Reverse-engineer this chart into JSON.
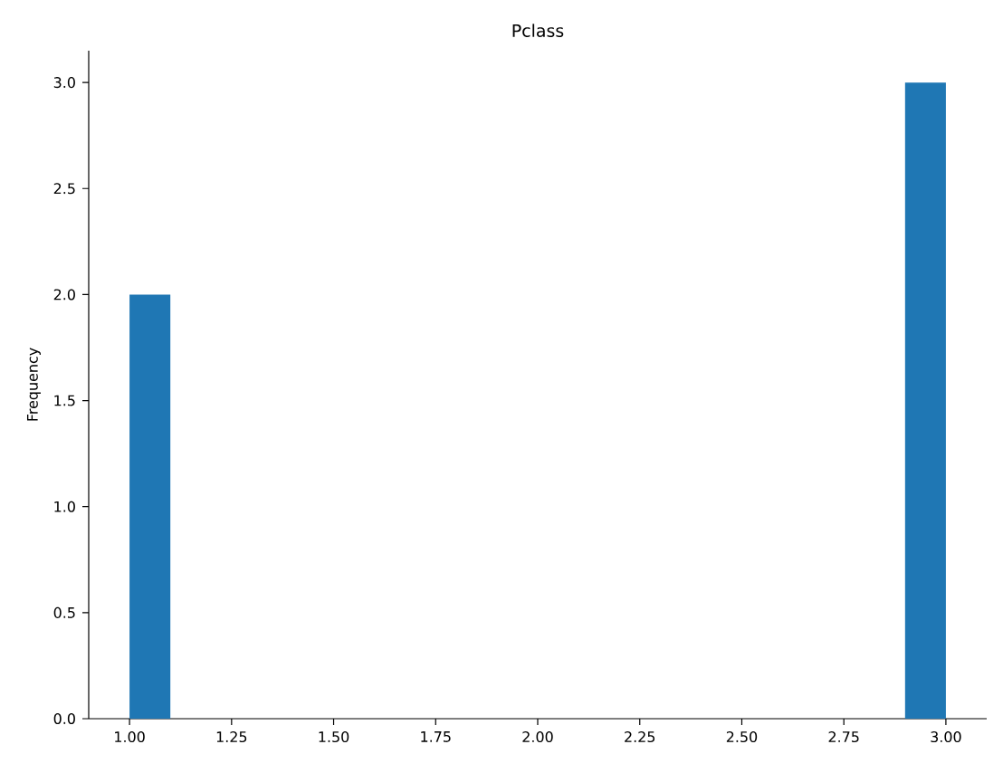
{
  "chart_data": {
    "type": "histogram",
    "title": "Pclass",
    "ylabel": "Frequency",
    "color": "#1f77b4",
    "bins": [
      1.0,
      1.1,
      1.2,
      1.3,
      1.4,
      1.5,
      1.6,
      1.7,
      1.8,
      1.9,
      2.0,
      2.1,
      2.2,
      2.3,
      2.4,
      2.5,
      2.6,
      2.7,
      2.8,
      2.9,
      3.0
    ],
    "values": [
      2,
      0,
      0,
      0,
      0,
      0,
      0,
      0,
      0,
      0,
      0,
      0,
      0,
      0,
      0,
      0,
      0,
      0,
      0,
      3
    ],
    "xlim": [
      0.9,
      3.1
    ],
    "ylim": [
      0,
      3.15
    ],
    "xticks": [
      {
        "value": 1.0,
        "label": "1.00"
      },
      {
        "value": 1.25,
        "label": "1.25"
      },
      {
        "value": 1.5,
        "label": "1.50"
      },
      {
        "value": 1.75,
        "label": "1.75"
      },
      {
        "value": 2.0,
        "label": "2.00"
      },
      {
        "value": 2.25,
        "label": "2.25"
      },
      {
        "value": 2.5,
        "label": "2.50"
      },
      {
        "value": 2.75,
        "label": "2.75"
      },
      {
        "value": 3.0,
        "label": "3.00"
      }
    ],
    "yticks": [
      {
        "value": 0,
        "label": "0.0"
      },
      {
        "value": 0.5,
        "label": "0.5"
      },
      {
        "value": 1.0,
        "label": "1.0"
      },
      {
        "value": 1.5,
        "label": "1.5"
      },
      {
        "value": 2.0,
        "label": "2.0"
      },
      {
        "value": 2.5,
        "label": "2.5"
      },
      {
        "value": 3.0,
        "label": "3.0"
      }
    ]
  }
}
